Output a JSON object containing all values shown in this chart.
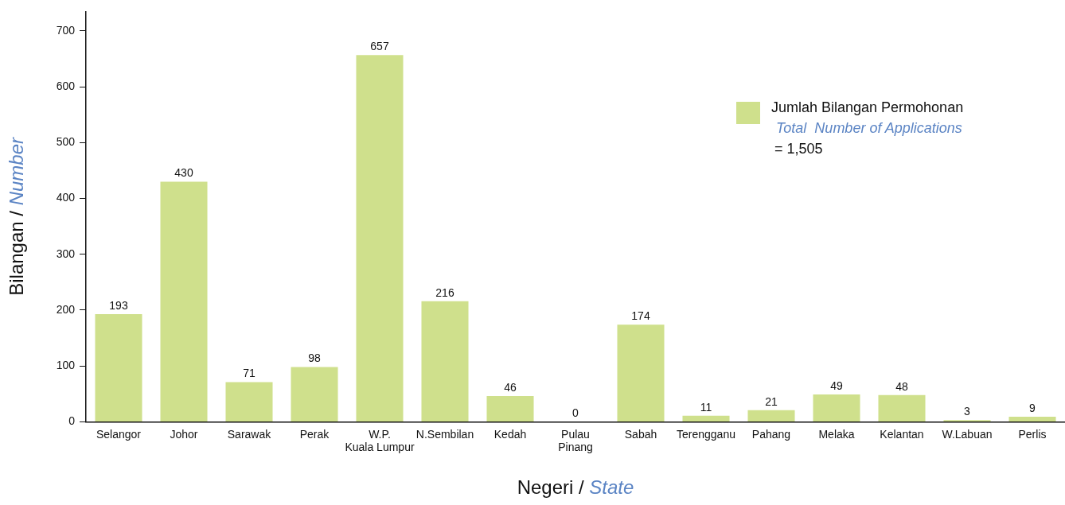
{
  "chart_data": {
    "type": "bar",
    "xlabel": "Negeri / State",
    "ylabel": "Bilangan / Number",
    "categories": [
      "Selangor",
      "Johor",
      "Sarawak",
      "Perak",
      "W.P.\nKuala Lumpur",
      "N.Sembilan",
      "Kedah",
      "Pulau\nPinang",
      "Sabah",
      "Terengganu",
      "Pahang",
      "Melaka",
      "Kelantan",
      "W.Labuan",
      "Perlis"
    ],
    "series": [
      {
        "name": "Jumlah Bilangan Permohonan",
        "color": "#cfe08c",
        "values": [
          193,
          430,
          71,
          98,
          657,
          216,
          46,
          0,
          174,
          11,
          21,
          49,
          48,
          3,
          9
        ]
      }
    ],
    "annotations": [
      "Total  Number of Applications",
      "= 1,505"
    ],
    "ylim": [
      0,
      735
    ],
    "yticks": [
      0,
      100,
      200,
      300,
      400,
      500,
      600,
      700
    ],
    "data_labels": true,
    "grid": false,
    "legend": "top right"
  }
}
